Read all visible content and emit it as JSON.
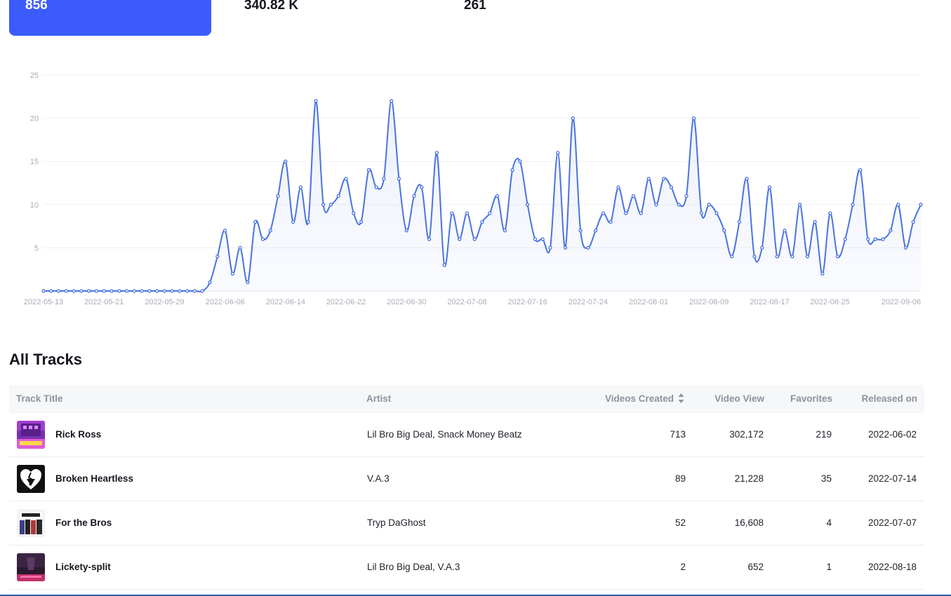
{
  "stats": {
    "first_value": "856",
    "second_value": "340.82 K",
    "third_value": "261"
  },
  "chart_data": {
    "type": "area",
    "title": "",
    "xlabel": "",
    "ylabel": "",
    "ylim": [
      0,
      25
    ],
    "yticks": [
      "",
      "5",
      "10",
      "15",
      "20",
      "25"
    ],
    "x_tick_labels": [
      "2022-05-13",
      "2022-05-21",
      "2022-05-29",
      "2022-06-06",
      "2022-06-14",
      "2022-06-22",
      "2022-06-30",
      "2022-07-08",
      "2022-07-16",
      "2022-07-24",
      "2022-08-01",
      "2022-08-09",
      "2022-08-17",
      "2022-08-25",
      "2022-09-06"
    ],
    "x_start": "2022-05-13",
    "x_end": "2022-09-06",
    "line_color": "#4a73e0",
    "grid": true,
    "series": [
      {
        "values": [
          0,
          0,
          0,
          0,
          0,
          0,
          0,
          0,
          0,
          0,
          0,
          0,
          0,
          0,
          0,
          0,
          0,
          0,
          0,
          0,
          0,
          0,
          1,
          4,
          7,
          2,
          5,
          1,
          8,
          6,
          7,
          11,
          15,
          8,
          12,
          8,
          22,
          10,
          10,
          11,
          13,
          9,
          8,
          14,
          12,
          13,
          22,
          13,
          7,
          11,
          12,
          6,
          16,
          3,
          9,
          6,
          9,
          6,
          8,
          9,
          11,
          7,
          14,
          15,
          10,
          6,
          6,
          5,
          16,
          5,
          20,
          7,
          5,
          7,
          9,
          8,
          12,
          9,
          11,
          9,
          13,
          10,
          13,
          12,
          10,
          11,
          20,
          9,
          10,
          9,
          7,
          4,
          8,
          13,
          4,
          5,
          12,
          4,
          7,
          4,
          10,
          4,
          8,
          2,
          9,
          4,
          6,
          10,
          14,
          6,
          6,
          6,
          7,
          10,
          5,
          8,
          10
        ]
      }
    ]
  },
  "section": {
    "title": "All Tracks"
  },
  "table": {
    "headers": {
      "title": "Track Title",
      "artist": "Artist",
      "videos": "Videos Created",
      "views": "Video View",
      "favorites": "Favorites",
      "released": "Released on"
    },
    "rows": [
      {
        "title": "Rick Ross",
        "artist": "Lil Bro Big Deal, Snack Money Beatz",
        "videos": "713",
        "views": "302,172",
        "favorites": "219",
        "released": "2022-06-02"
      },
      {
        "title": "Broken Heartless",
        "artist": "V.A.3",
        "videos": "89",
        "views": "21,228",
        "favorites": "35",
        "released": "2022-07-14"
      },
      {
        "title": "For the Bros",
        "artist": "Tryp DaGhost",
        "videos": "52",
        "views": "16,608",
        "favorites": "4",
        "released": "2022-07-07"
      },
      {
        "title": "Lickety-split",
        "artist": "Lil Bro Big Deal, V.A.3",
        "videos": "2",
        "views": "652",
        "favorites": "1",
        "released": "2022-08-18"
      }
    ]
  }
}
